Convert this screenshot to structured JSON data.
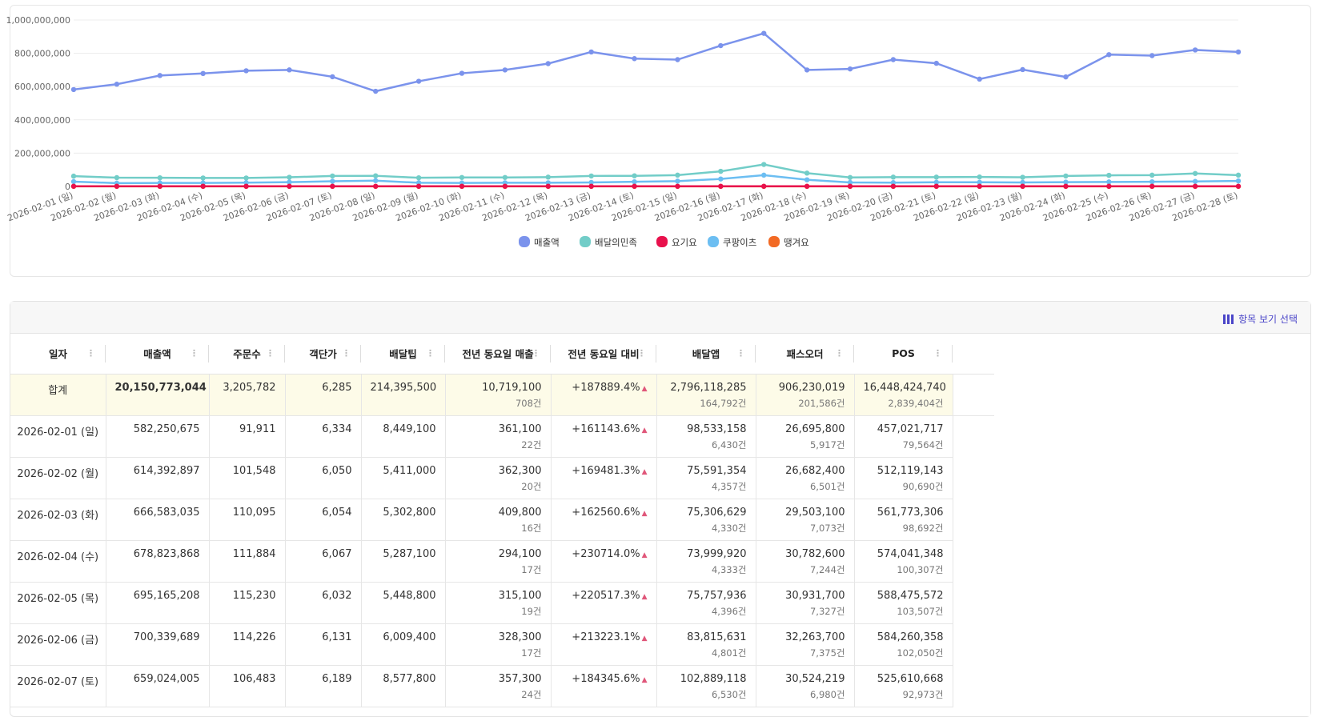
{
  "chart_data": {
    "type": "line",
    "categories": [
      "2026-02-01 (일)",
      "2026-02-02 (월)",
      "2026-02-03 (화)",
      "2026-02-04 (수)",
      "2026-02-05 (목)",
      "2026-02-06 (금)",
      "2026-02-07 (토)",
      "2026-02-08 (일)",
      "2026-02-09 (월)",
      "2026-02-10 (화)",
      "2026-02-11 (수)",
      "2026-02-12 (목)",
      "2026-02-13 (금)",
      "2026-02-14 (토)",
      "2026-02-15 (일)",
      "2026-02-16 (월)",
      "2026-02-17 (화)",
      "2026-02-18 (수)",
      "2026-02-19 (목)",
      "2026-02-20 (금)",
      "2026-02-21 (토)",
      "2026-02-22 (일)",
      "2026-02-23 (월)",
      "2026-02-24 (화)",
      "2026-02-25 (수)",
      "2026-02-26 (목)",
      "2026-02-27 (금)",
      "2026-02-28 (토)"
    ],
    "yticks": [
      "0",
      "200,000,000",
      "400,000,000",
      "600,000,000",
      "800,000,000",
      "1,000,000,000"
    ],
    "ylim": [
      0,
      1000000000
    ],
    "grid": true,
    "legend_position": "bottom-center",
    "series": [
      {
        "name": "매출액",
        "color": "#7b93ec",
        "values": [
          582250675,
          614392897,
          666583035,
          678823868,
          695165208,
          700339689,
          659024005,
          572000000,
          632000000,
          680000000,
          700000000,
          738000000,
          808000000,
          768000000,
          762000000,
          846000000,
          920000000,
          700000000,
          706000000,
          762000000,
          740000000,
          645000000,
          702000000,
          658000000,
          792000000,
          786000000,
          820000000,
          808000000
        ]
      },
      {
        "name": "배달의민족",
        "color": "#72cdc8",
        "values": [
          62000000,
          53000000,
          52000000,
          51000000,
          51000000,
          55000000,
          63000000,
          64000000,
          52000000,
          54000000,
          54000000,
          56000000,
          63000000,
          64000000,
          68000000,
          91000000,
          132000000,
          80000000,
          54000000,
          56000000,
          56000000,
          57000000,
          55000000,
          63000000,
          67000000,
          68000000,
          78000000,
          68000000
        ]
      },
      {
        "name": "요기요",
        "color": "#e8114c",
        "values": [
          1000000,
          1000000,
          1000000,
          1000000,
          1000000,
          1000000,
          1000000,
          1000000,
          1000000,
          1000000,
          1000000,
          1000000,
          1000000,
          1000000,
          1000000,
          1000000,
          1000000,
          1000000,
          1000000,
          1000000,
          1000000,
          1000000,
          1000000,
          1000000,
          1000000,
          1000000,
          1000000,
          1000000
        ]
      },
      {
        "name": "쿠팡이츠",
        "color": "#6cbef2",
        "values": [
          29000000,
          20000000,
          21000000,
          21000000,
          23000000,
          26000000,
          31000000,
          35000000,
          22000000,
          21000000,
          22000000,
          22000000,
          24000000,
          28000000,
          32000000,
          45000000,
          68000000,
          40000000,
          24000000,
          23000000,
          25000000,
          25000000,
          24000000,
          26000000,
          27000000,
          28000000,
          30000000,
          33000000
        ]
      },
      {
        "name": "땡겨요",
        "color": "#f26a24",
        "values": [
          800000,
          800000,
          800000,
          800000,
          800000,
          800000,
          800000,
          800000,
          800000,
          800000,
          800000,
          800000,
          800000,
          800000,
          800000,
          800000,
          800000,
          800000,
          800000,
          800000,
          800000,
          800000,
          800000,
          800000,
          800000,
          800000,
          800000,
          800000
        ]
      }
    ]
  },
  "toolbar": {
    "column_select_label": "항목 보기 선택",
    "column_select_icon": "columns-icon"
  },
  "table": {
    "headers": [
      "일자",
      "매출액",
      "주문수",
      "객단가",
      "배달팁",
      "전년 동요일 매출",
      "전년 동요일 대비",
      "배달앱",
      "패스오더",
      "POS"
    ],
    "total": {
      "date": "합계",
      "sales": "20,150,773,044",
      "orders": "3,205,782",
      "avg": "6,285",
      "tip": "214,395,500",
      "prev": "10,719,100",
      "prev_cnt": "708건",
      "ratio": "+187889.4%",
      "app": "2,796,118,285",
      "app_cnt": "164,792건",
      "pass": "906,230,019",
      "pass_cnt": "201,586건",
      "pos": "16,448,424,740",
      "pos_cnt": "2,839,404건"
    },
    "rows": [
      {
        "date": "2026-02-01 (일)",
        "sales": "582,250,675",
        "orders": "91,911",
        "avg": "6,334",
        "tip": "8,449,100",
        "prev": "361,100",
        "prev_cnt": "22건",
        "ratio": "+161143.6%",
        "app": "98,533,158",
        "app_cnt": "6,430건",
        "pass": "26,695,800",
        "pass_cnt": "5,917건",
        "pos": "457,021,717",
        "pos_cnt": "79,564건"
      },
      {
        "date": "2026-02-02 (월)",
        "sales": "614,392,897",
        "orders": "101,548",
        "avg": "6,050",
        "tip": "5,411,000",
        "prev": "362,300",
        "prev_cnt": "20건",
        "ratio": "+169481.3%",
        "app": "75,591,354",
        "app_cnt": "4,357건",
        "pass": "26,682,400",
        "pass_cnt": "6,501건",
        "pos": "512,119,143",
        "pos_cnt": "90,690건"
      },
      {
        "date": "2026-02-03 (화)",
        "sales": "666,583,035",
        "orders": "110,095",
        "avg": "6,054",
        "tip": "5,302,800",
        "prev": "409,800",
        "prev_cnt": "16건",
        "ratio": "+162560.6%",
        "app": "75,306,629",
        "app_cnt": "4,330건",
        "pass": "29,503,100",
        "pass_cnt": "7,073건",
        "pos": "561,773,306",
        "pos_cnt": "98,692건"
      },
      {
        "date": "2026-02-04 (수)",
        "sales": "678,823,868",
        "orders": "111,884",
        "avg": "6,067",
        "tip": "5,287,100",
        "prev": "294,100",
        "prev_cnt": "17건",
        "ratio": "+230714.0%",
        "app": "73,999,920",
        "app_cnt": "4,333건",
        "pass": "30,782,600",
        "pass_cnt": "7,244건",
        "pos": "574,041,348",
        "pos_cnt": "100,307건"
      },
      {
        "date": "2026-02-05 (목)",
        "sales": "695,165,208",
        "orders": "115,230",
        "avg": "6,032",
        "tip": "5,448,800",
        "prev": "315,100",
        "prev_cnt": "19건",
        "ratio": "+220517.3%",
        "app": "75,757,936",
        "app_cnt": "4,396건",
        "pass": "30,931,700",
        "pass_cnt": "7,327건",
        "pos": "588,475,572",
        "pos_cnt": "103,507건"
      },
      {
        "date": "2026-02-06 (금)",
        "sales": "700,339,689",
        "orders": "114,226",
        "avg": "6,131",
        "tip": "6,009,400",
        "prev": "328,300",
        "prev_cnt": "17건",
        "ratio": "+213223.1%",
        "app": "83,815,631",
        "app_cnt": "4,801건",
        "pass": "32,263,700",
        "pass_cnt": "7,375건",
        "pos": "584,260,358",
        "pos_cnt": "102,050건"
      },
      {
        "date": "2026-02-07 (토)",
        "sales": "659,024,005",
        "orders": "106,483",
        "avg": "6,189",
        "tip": "8,577,800",
        "prev": "357,300",
        "prev_cnt": "24건",
        "ratio": "+184345.6%",
        "app": "102,889,118",
        "app_cnt": "6,530건",
        "pass": "30,524,219",
        "pass_cnt": "6,980건",
        "pos": "525,610,668",
        "pos_cnt": "92,973건"
      }
    ]
  }
}
